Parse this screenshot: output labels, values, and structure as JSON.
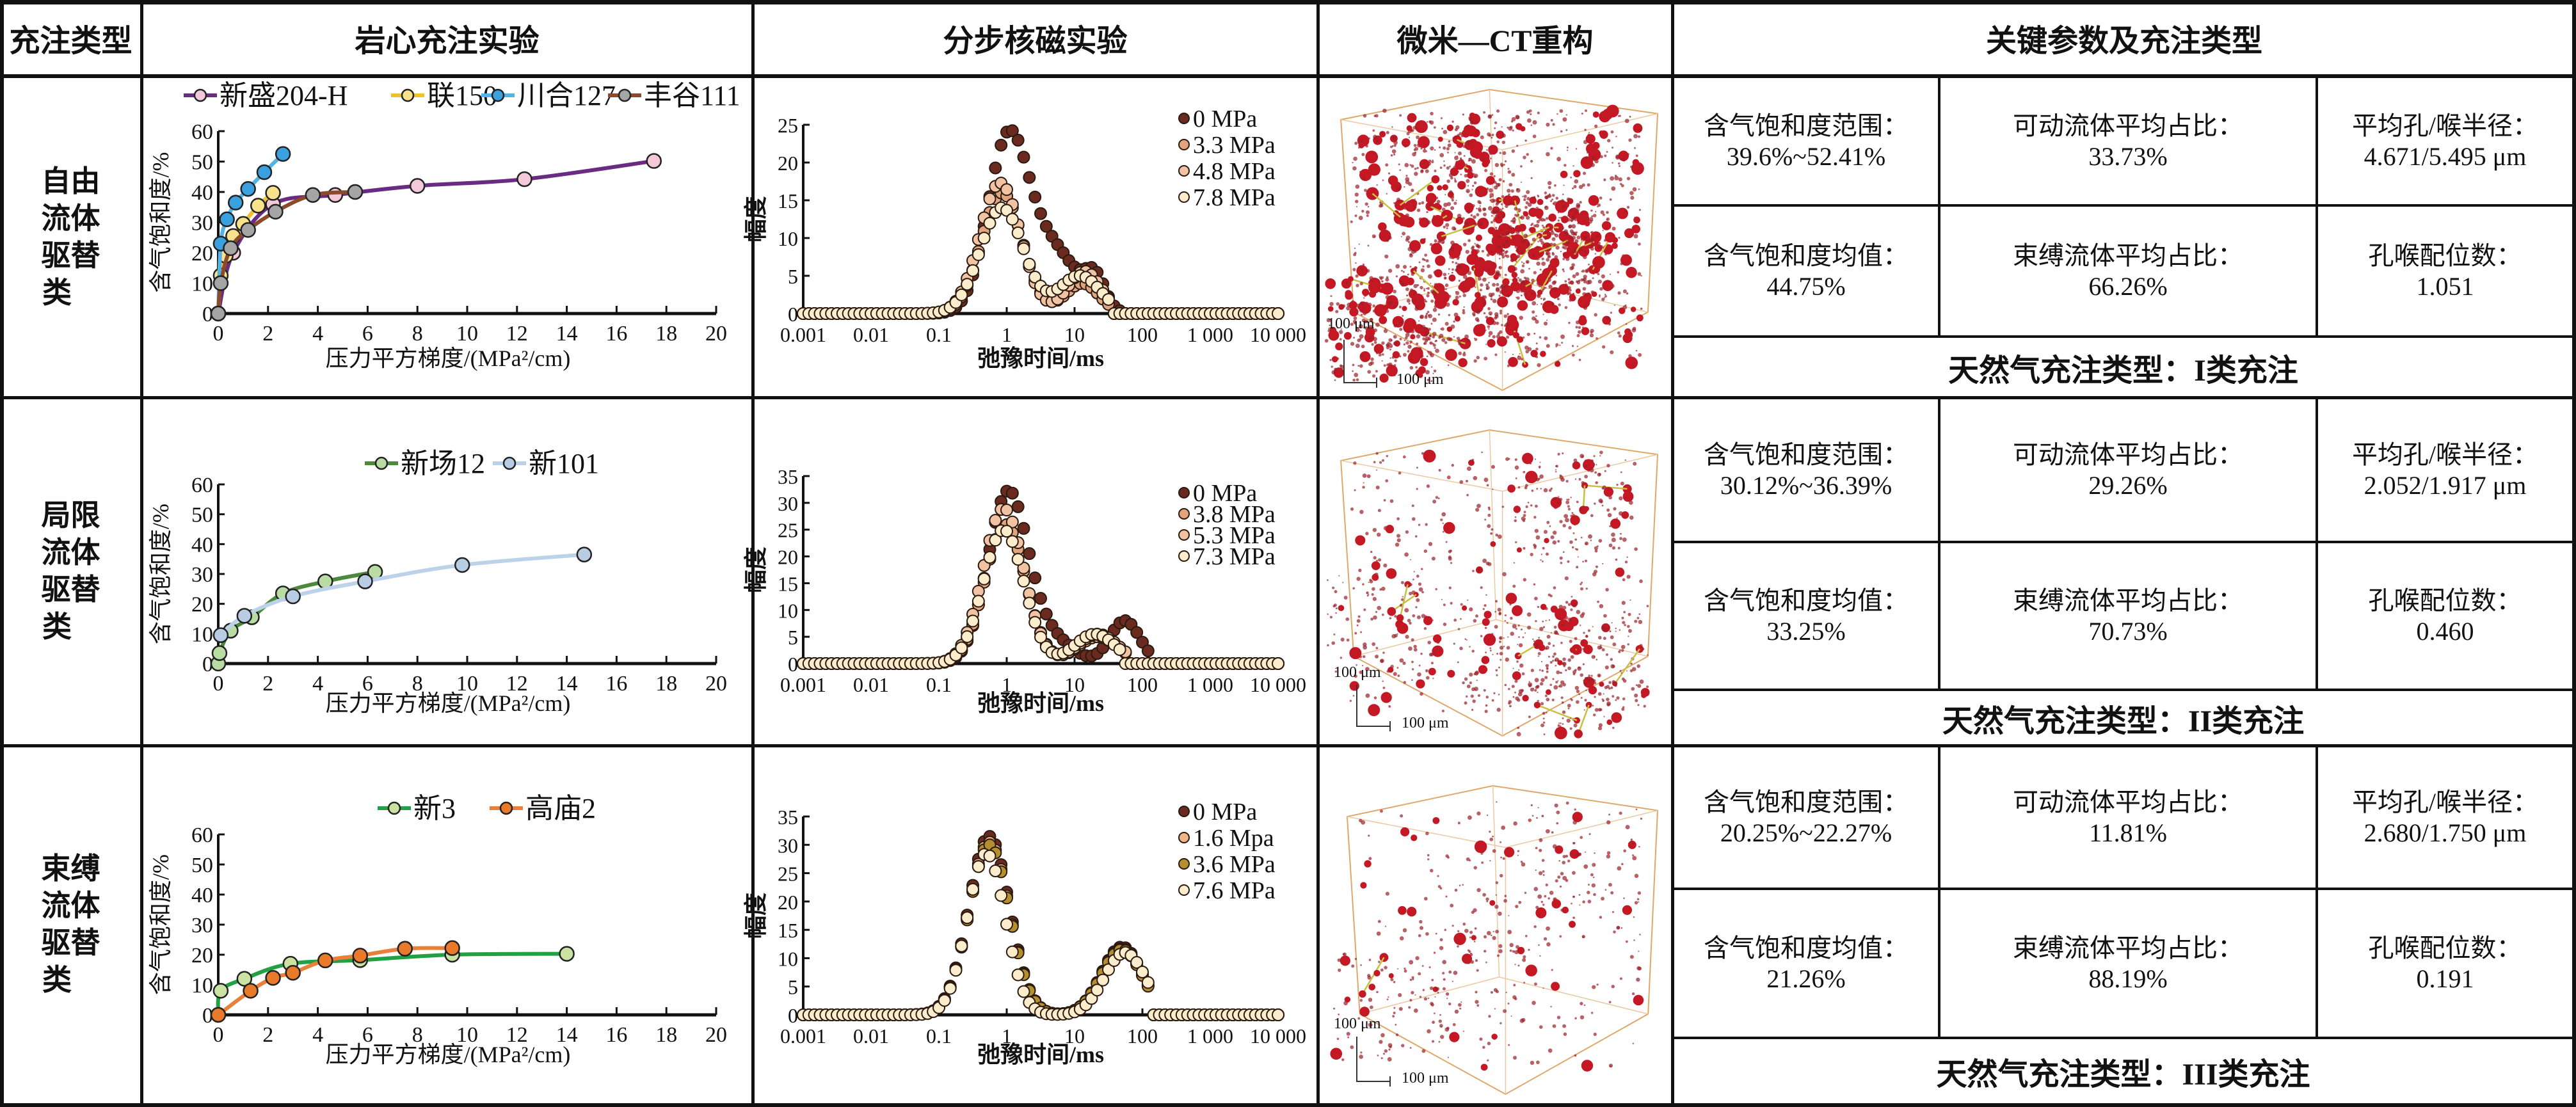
{
  "header": {
    "col_type": "充注类型",
    "col_core": "岩心充注实验",
    "col_nmr": "分步核磁实验",
    "col_ct": "微米—CT重构",
    "col_params": "关键参数及充注类型"
  },
  "rows": [
    {
      "type_label": [
        "自由",
        "流体",
        "驱替",
        "类"
      ],
      "params": {
        "sat_range_label": "含气饱和度范围：",
        "sat_range": "39.6%~52.41%",
        "movable_label": "可动流体平均占比：",
        "movable": "33.73%",
        "radius_label": "平均孔/喉半径：",
        "radius": "4.671/5.495 μm",
        "sat_mean_label": "含气饱和度均值：",
        "sat_mean": "44.75%",
        "bound_label": "束缚流体平均占比：",
        "bound": "66.26%",
        "coord_label": "孔喉配位数：",
        "coord": "1.051"
      },
      "charge_type": "天然气充注类型：I类充注",
      "ct": {
        "scale_v": "100 μm",
        "scale_h": "100 μm"
      }
    },
    {
      "type_label": [
        "局限",
        "流体",
        "驱替",
        "类"
      ],
      "params": {
        "sat_range_label": "含气饱和度范围：",
        "sat_range": "30.12%~36.39%",
        "movable_label": "可动流体平均占比：",
        "movable": "29.26%",
        "radius_label": "平均孔/喉半径：",
        "radius": "2.052/1.917 μm",
        "sat_mean_label": "含气饱和度均值：",
        "sat_mean": "33.25%",
        "bound_label": "束缚流体平均占比：",
        "bound": "70.73%",
        "coord_label": "孔喉配位数：",
        "coord": "0.460"
      },
      "charge_type": "天然气充注类型：II类充注",
      "ct": {
        "scale_v": "100 μm",
        "scale_h": "100 μm"
      }
    },
    {
      "type_label": [
        "束缚",
        "流体",
        "驱替",
        "类"
      ],
      "params": {
        "sat_range_label": "含气饱和度范围：",
        "sat_range": "20.25%~22.27%",
        "movable_label": "可动流体平均占比：",
        "movable": "11.81%",
        "radius_label": "平均孔/喉半径：",
        "radius": "2.680/1.750 μm",
        "sat_mean_label": "含气饱和度均值：",
        "sat_mean": "21.26%",
        "bound_label": "束缚流体平均占比：",
        "bound": "88.19%",
        "coord_label": "孔喉配位数：",
        "coord": "0.191"
      },
      "charge_type": "天然气充注类型：III类充注",
      "ct": {
        "scale_v": "100 μm",
        "scale_h": "100 μm"
      }
    }
  ],
  "chart_data": [
    {
      "type": "line",
      "title": "",
      "xlabel": "压力平方梯度/(MPa²/cm)",
      "ylabel": "含气饱和度/%",
      "xlim": [
        0,
        20
      ],
      "ylim": [
        0,
        60
      ],
      "xstep": 2,
      "ystep": 10,
      "grid": false,
      "legend": "top",
      "series": [
        {
          "name": "新盛204-H",
          "line_color": "#6a2c82",
          "marker_color": "#f3c9d9",
          "x": [
            0,
            0.6,
            2.2,
            4.7,
            8,
            12.3,
            17.5
          ],
          "y": [
            0,
            20,
            36,
            39,
            42,
            44.2,
            50.2
          ]
        },
        {
          "name": "联150",
          "line_color": "#f0c030",
          "marker_color": "#f9e28c",
          "x": [
            0,
            0.1,
            0.3,
            0.6,
            1.0,
            1.6,
            2.2
          ],
          "y": [
            0,
            12.5,
            19,
            25.5,
            29.5,
            35.5,
            39.7
          ]
        },
        {
          "name": "川合127",
          "line_color": "#56b2e2",
          "marker_color": "#3aa0e0",
          "x": [
            0,
            0.1,
            0.35,
            0.7,
            1.2,
            1.85,
            2.6
          ],
          "y": [
            0,
            23,
            31,
            36.5,
            41,
            46.5,
            52.5
          ]
        },
        {
          "name": "丰谷111",
          "line_color": "#8b4a2a",
          "marker_color": "#a5a5a5",
          "x": [
            0,
            0.1,
            0.5,
            1.2,
            2.3,
            3.8,
            5.5
          ],
          "y": [
            0,
            10,
            21.5,
            27.5,
            33.5,
            39,
            40
          ]
        }
      ]
    },
    {
      "type": "scatter",
      "title": "",
      "xlabel": "弛豫时间/ms",
      "ylabel": "幅度",
      "xscale": "log",
      "xlim": [
        0.001,
        10000
      ],
      "ylim": [
        0,
        25
      ],
      "ystep": 5,
      "xticklabels": [
        "0.001",
        "0.01",
        "0.1",
        "1",
        "10",
        "100",
        "1 000",
        "10 000"
      ],
      "legend": "top-right",
      "points_per_decade": 12,
      "series": [
        {
          "name": "0 MPa",
          "color": "#6b2a1f",
          "range": [
            0.05,
            50
          ],
          "peaks": [
            [
              23,
              1.05,
              0.3
            ],
            [
              8,
              5,
              0.35
            ],
            [
              4,
              20,
              0.15
            ]
          ]
        },
        {
          "name": "3.3 MPa",
          "color": "#e2a47c",
          "range": [
            0.05,
            35
          ],
          "peaks": [
            [
              16,
              0.85,
              0.3
            ],
            [
              4,
              13,
              0.25
            ]
          ]
        },
        {
          "name": "4.8 MPa",
          "color": "#f2c3a3",
          "range": [
            0.05,
            35
          ],
          "peaks": [
            [
              17.3,
              0.8,
              0.3
            ],
            [
              5.6,
              14,
              0.25
            ]
          ]
        },
        {
          "name": "7.8 MPa",
          "color": "#fbeccb",
          "range": [
            0.05,
            35
          ],
          "peaks": [
            [
              14,
              0.85,
              0.32
            ],
            [
              5,
              12,
              0.3
            ]
          ]
        }
      ]
    },
    {
      "type": "line",
      "title": "",
      "xlabel": "压力平方梯度/(MPa²/cm)",
      "ylabel": "含气饱和度/%",
      "xlim": [
        0,
        20
      ],
      "ylim": [
        0,
        60
      ],
      "xstep": 2,
      "ystep": 10,
      "grid": false,
      "legend": "top",
      "series": [
        {
          "name": "新场12",
          "line_color": "#4a8a3a",
          "marker_color": "#b9dca2",
          "x": [
            0,
            0.05,
            0.5,
            1.35,
            2.6,
            4.3,
            6.3
          ],
          "y": [
            0,
            3.5,
            11,
            15.5,
            23.5,
            27.5,
            30.7
          ]
        },
        {
          "name": "新101",
          "line_color": "#bcd2ea",
          "marker_color": "#b8cce4",
          "x": [
            0.1,
            1.05,
            3.0,
            5.9,
            9.8,
            14.7
          ],
          "y": [
            9.5,
            16,
            22.5,
            27.5,
            33,
            36.5
          ]
        }
      ]
    },
    {
      "type": "scatter",
      "title": "",
      "xlabel": "弛豫时间/ms",
      "ylabel": "幅度",
      "xscale": "log",
      "xlim": [
        0.001,
        10000
      ],
      "ylim": [
        0,
        35
      ],
      "ystep": 5,
      "xticklabels": [
        "0.001",
        "0.01",
        "0.1",
        "1",
        "10",
        "100",
        "1 000",
        "10 000"
      ],
      "legend": "top-right",
      "points_per_decade": 12,
      "series": [
        {
          "name": "0 MPa",
          "color": "#6b2a1f",
          "range": [
            0.05,
            140
          ],
          "peaks": [
            [
              32,
              1.05,
              0.3
            ],
            [
              4,
              5,
              0.3
            ],
            [
              8,
              55,
              0.22
            ]
          ]
        },
        {
          "name": "3.8 MPa",
          "color": "#e2a47c",
          "range": [
            0.05,
            60
          ],
          "peaks": [
            [
              26,
              0.95,
              0.3
            ],
            [
              5,
              22,
              0.3
            ]
          ]
        },
        {
          "name": "5.3 MPa",
          "color": "#f2c3a3",
          "range": [
            0.05,
            60
          ],
          "peaks": [
            [
              29,
              0.9,
              0.3
            ],
            [
              5.5,
              22,
              0.3
            ]
          ]
        },
        {
          "name": "7.3 MPa",
          "color": "#fbeccb",
          "range": [
            0.05,
            50
          ],
          "peaks": [
            [
              25,
              0.9,
              0.3
            ],
            [
              5.5,
              20,
              0.3
            ]
          ]
        }
      ]
    },
    {
      "type": "line",
      "title": "",
      "xlabel": "压力平方梯度/(MPa²/cm)",
      "ylabel": "含气饱和度/%",
      "xlim": [
        0,
        20
      ],
      "ylim": [
        0,
        60
      ],
      "xstep": 2,
      "ystep": 10,
      "grid": false,
      "legend": "top",
      "series": [
        {
          "name": "新3",
          "line_color": "#22a044",
          "marker_color": "#cae2a2",
          "x": [
            0,
            0.1,
            1.05,
            2.9,
            5.7,
            9.4,
            14
          ],
          "y": [
            0,
            8,
            12,
            17,
            18.2,
            20,
            20.3
          ]
        },
        {
          "name": "高庙2",
          "line_color": "#e8803a",
          "marker_color": "#e87a2a",
          "x": [
            0,
            1.3,
            2.2,
            3.0,
            4.3,
            5.7,
            7.5,
            9.4
          ],
          "y": [
            0,
            8,
            12.3,
            14,
            18.1,
            19.7,
            22,
            22.2
          ]
        }
      ]
    },
    {
      "type": "scatter",
      "title": "",
      "xlabel": "弛豫时间/ms",
      "ylabel": "幅度",
      "xscale": "log",
      "xlim": [
        0.001,
        10000
      ],
      "ylim": [
        0,
        35
      ],
      "ystep": 5,
      "xticklabels": [
        "0.001",
        "0.01",
        "0.1",
        "1",
        "10",
        "100",
        "1 000",
        "10 000"
      ],
      "legend": "top-right",
      "points_per_decade": 12,
      "series": [
        {
          "name": "0 MPa",
          "color": "#6b2a1f",
          "range": [
            0.03,
            130
          ],
          "peaks": [
            [
              31.5,
              0.55,
              0.3
            ],
            [
              12,
              50,
              0.3
            ]
          ]
        },
        {
          "name": "1.6 Mpa",
          "color": "#f0b48a",
          "range": [
            0.03,
            130
          ],
          "peaks": [
            [
              30.5,
              0.55,
              0.3
            ],
            [
              11.7,
              50,
              0.3
            ]
          ]
        },
        {
          "name": "3.6 MPa",
          "color": "#b58f2e",
          "range": [
            0.03,
            130
          ],
          "peaks": [
            [
              30,
              0.55,
              0.3
            ],
            [
              11.5,
              50,
              0.3
            ]
          ]
        },
        {
          "name": "7.6 MPa",
          "color": "#fbeccb",
          "range": [
            0.03,
            130
          ],
          "peaks": [
            [
              28.5,
              0.5,
              0.28
            ],
            [
              11,
              55,
              0.3
            ]
          ]
        }
      ]
    }
  ]
}
